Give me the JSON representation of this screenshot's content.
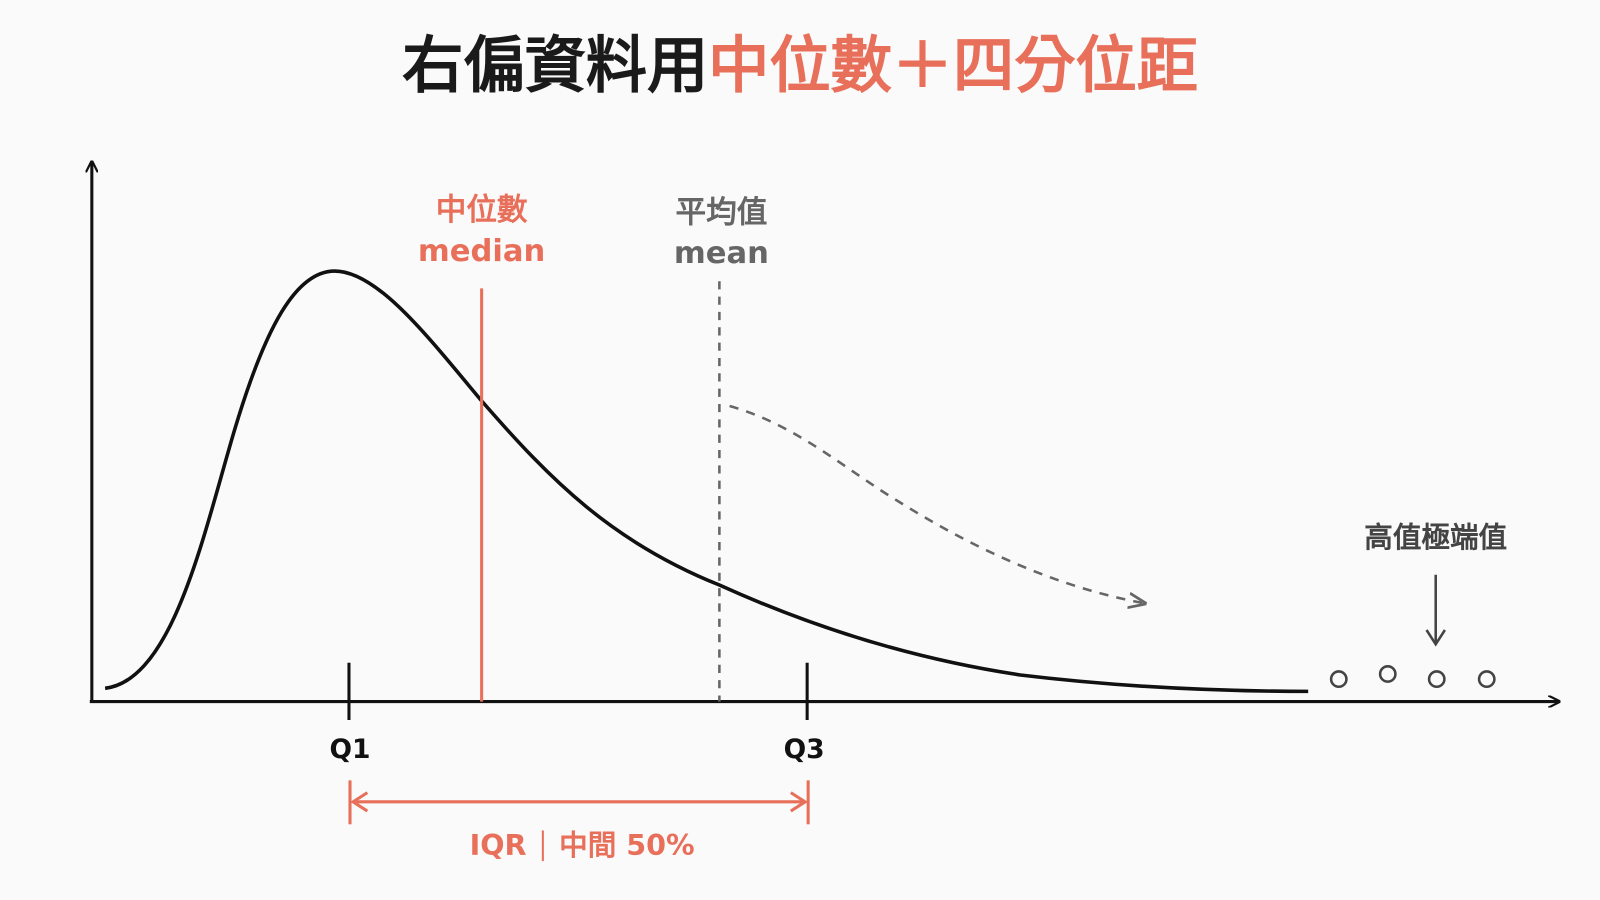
{
  "title": {
    "lead": "右偏資料用",
    "highlight": "中位數＋四分位距"
  },
  "median_label": {
    "zh": "中位數",
    "en": "median"
  },
  "mean_label": {
    "zh": "平均值",
    "en": "mean"
  },
  "quartiles": {
    "q1": "Q1",
    "q3": "Q3"
  },
  "iqr_label": {
    "name": "IQR",
    "desc": "中間 50%"
  },
  "outlier_label": "高值極端值"
}
